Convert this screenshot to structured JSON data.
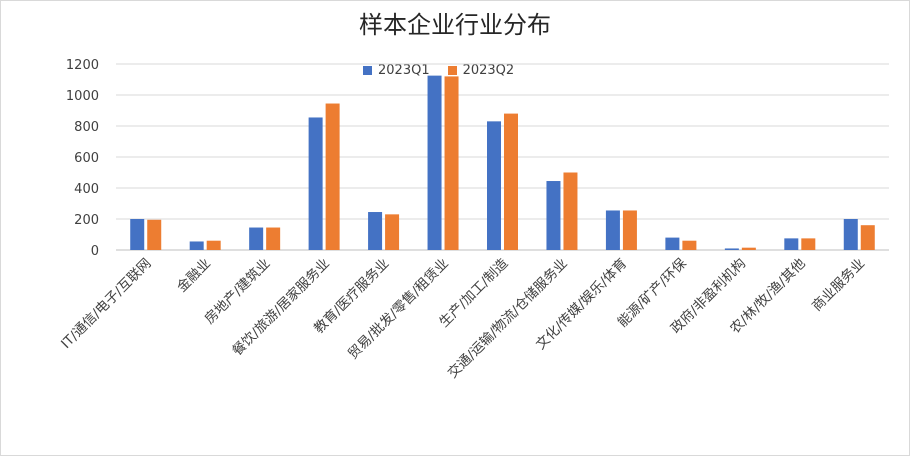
{
  "chart_data": {
    "type": "bar",
    "title": "样本企业行业分布",
    "xlabel": "",
    "ylabel": "",
    "ylim": [
      0,
      1200
    ],
    "yticks": [
      0,
      200,
      400,
      600,
      800,
      1000,
      1200
    ],
    "grid": true,
    "legend_position": "top-center",
    "categories": [
      "IT/通信/电子/互联网",
      "金融业",
      "房地产/建筑业",
      "餐饮/旅游/居家服务业",
      "教育/医疗服务业",
      "贸易/批发/零售/租赁业",
      "生产/加工/制造",
      "交通/运输/物流/仓储服务业",
      "文化/传媒/娱乐/体育",
      "能源/矿产/环保",
      "政府/非盈利机构",
      "农/林/牧/渔/其他",
      "商业服务业"
    ],
    "series": [
      {
        "name": "2023Q1",
        "color": "#4472c4",
        "values": [
          200,
          55,
          145,
          855,
          245,
          1125,
          830,
          445,
          255,
          80,
          10,
          75,
          200
        ]
      },
      {
        "name": "2023Q2",
        "color": "#ed7d31",
        "values": [
          195,
          60,
          145,
          945,
          230,
          1120,
          880,
          500,
          255,
          60,
          15,
          75,
          160
        ]
      }
    ]
  }
}
